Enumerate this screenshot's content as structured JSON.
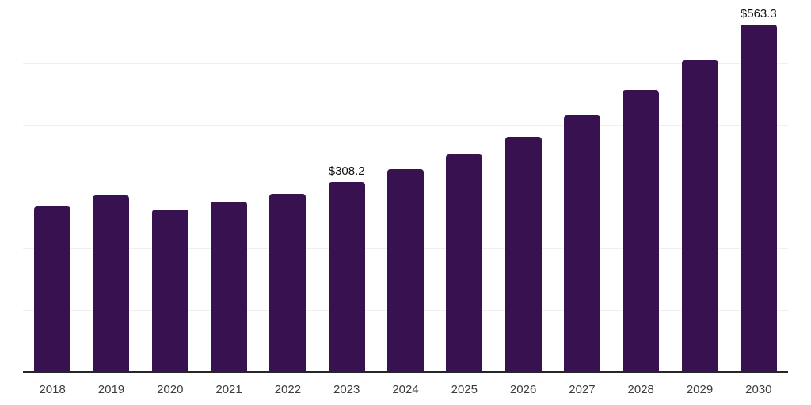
{
  "chart_data": {
    "type": "bar",
    "title": "",
    "xlabel": "",
    "ylabel": "",
    "categories": [
      "2018",
      "2019",
      "2020",
      "2021",
      "2022",
      "2023",
      "2024",
      "2025",
      "2026",
      "2027",
      "2028",
      "2029",
      "2030"
    ],
    "values": [
      268.4,
      286.0,
      263.4,
      276.1,
      289.0,
      308.2,
      328.2,
      353.0,
      381.3,
      415.0,
      457.0,
      505.5,
      563.3
    ],
    "point_labels": [
      {
        "category": "2023",
        "text": "$308.2"
      },
      {
        "category": "2030",
        "text": "$563.3"
      }
    ],
    "ylim": [
      0,
      600
    ],
    "grid_step": 100,
    "grid": "horizontal",
    "legend": "none",
    "colors": {
      "bar": "#371150",
      "grid": "#efefef",
      "axis": "#262626",
      "tick_label": "#3c3c3c",
      "value_label": "#111111",
      "background": "#ffffff"
    }
  }
}
